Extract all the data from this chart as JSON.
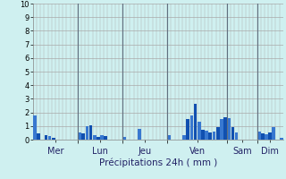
{
  "title": "Précipitations 24h ( mm )",
  "ylim": [
    0,
    10
  ],
  "yticks": [
    0,
    1,
    2,
    3,
    4,
    5,
    6,
    7,
    8,
    9,
    10
  ],
  "background_color": "#cff0f0",
  "plot_bg_color": "#cff0f0",
  "grid_color_h": "#aaaaaa",
  "grid_color_v": "#aaaaaa",
  "bar_color_dark": "#1050b0",
  "bar_color_light": "#3878d0",
  "day_labels": [
    "Mer",
    "Lun",
    "Jeu",
    "Ven",
    "Sam",
    "Dim"
  ],
  "day_sep_positions": [
    0,
    12,
    24,
    36,
    52,
    60,
    67
  ],
  "n_bars": 67,
  "values": [
    1.8,
    0.45,
    0.0,
    0.3,
    0.25,
    0.1,
    0.0,
    0.0,
    0.0,
    0.0,
    0.0,
    0.0,
    0.5,
    0.45,
    1.0,
    1.05,
    0.3,
    0.2,
    0.3,
    0.25,
    0.0,
    0.0,
    0.0,
    0.0,
    0.2,
    0.0,
    0.0,
    0.0,
    0.8,
    0.0,
    0.0,
    0.0,
    0.0,
    0.0,
    0.0,
    0.0,
    0.3,
    0.0,
    0.0,
    0.0,
    0.35,
    1.5,
    1.75,
    2.6,
    1.3,
    0.75,
    0.65,
    0.5,
    0.6,
    0.9,
    1.5,
    1.65,
    1.6,
    0.95,
    0.5,
    0.0,
    0.0,
    0.0,
    0.0,
    0.0,
    0.6,
    0.45,
    0.4,
    0.55,
    0.9,
    0.0,
    0.1
  ],
  "title_fontsize": 7.5,
  "tick_fontsize": 6,
  "day_fontsize": 7
}
